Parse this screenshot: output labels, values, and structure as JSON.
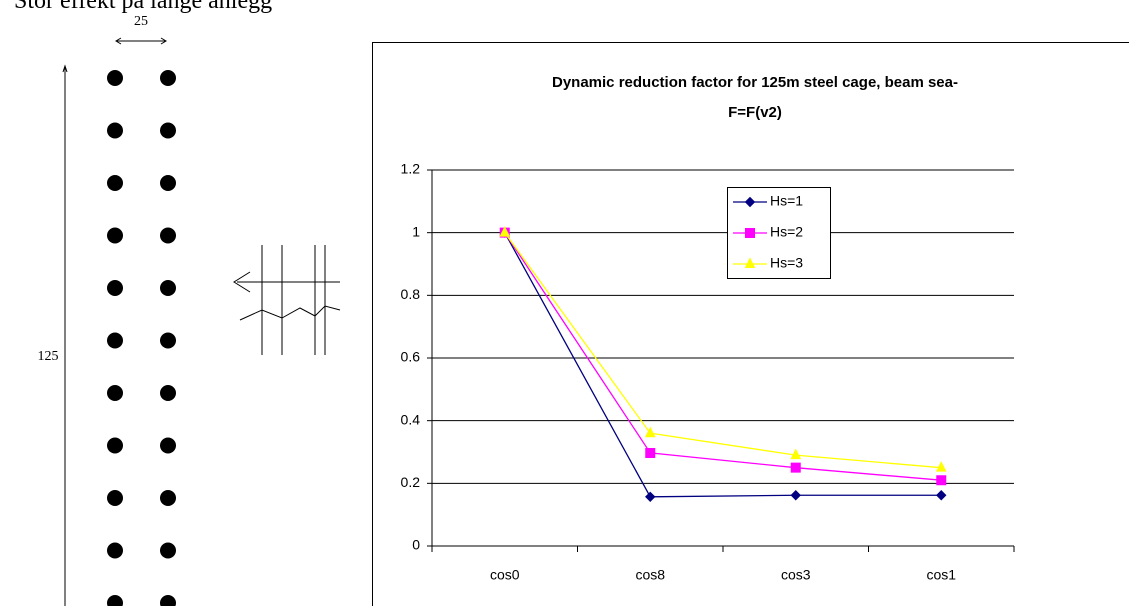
{
  "header_text": "Stor effekt på lange anlegg",
  "diagram": {
    "width_label": "25",
    "height_label": "125"
  },
  "chart_data": {
    "type": "line",
    "title": [
      "Dynamic reduction factor for 125m steel cage, beam sea-",
      "F=F(v2)"
    ],
    "categories": [
      "cos0",
      "cos8",
      "cos3",
      "cos1"
    ],
    "series": [
      {
        "name": "Hs=1",
        "color": "#000080",
        "marker": "diamond",
        "values": [
          1,
          0.157,
          0.162,
          0.162
        ]
      },
      {
        "name": "Hs=2",
        "color": "#ff00ff",
        "marker": "square",
        "values": [
          1,
          0.297,
          0.25,
          0.21
        ]
      },
      {
        "name": "Hs=3",
        "color": "#ffff00",
        "marker": "triangle",
        "values": [
          1,
          0.36,
          0.29,
          0.25
        ]
      }
    ],
    "ylim": [
      0,
      1.2
    ],
    "yticks": [
      0,
      0.2,
      0.4,
      0.6,
      0.8,
      1,
      1.2
    ],
    "grid": true
  }
}
